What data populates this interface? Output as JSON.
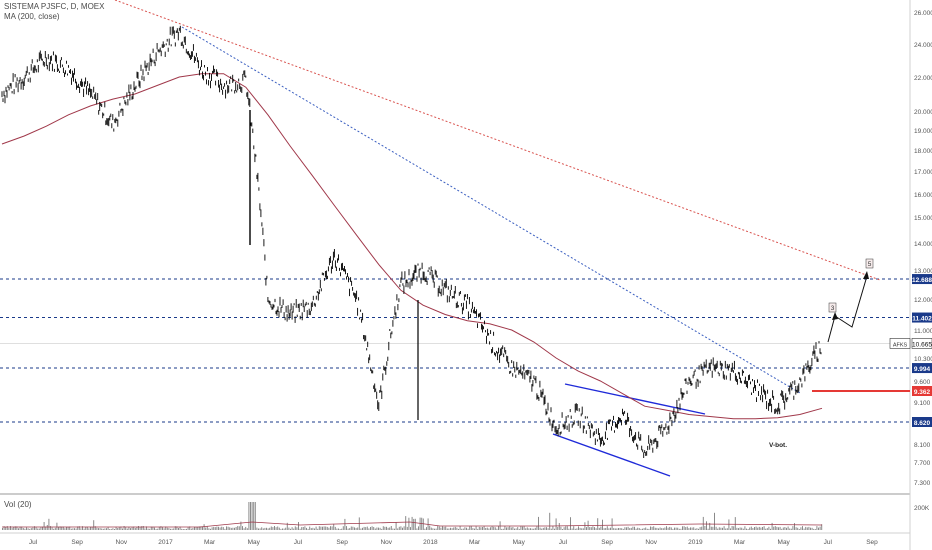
{
  "header": {
    "symbol_line": "SISTEMA PJSFC, D, MOEX",
    "ma_line": "MA (200, close)",
    "vol_label": "Vol (20)"
  },
  "price_axis": {
    "ticks": [
      "26.000",
      "24.000",
      "22.000",
      "20.000",
      "19.000",
      "18.000",
      "17.000",
      "16.000",
      "15.000",
      "14.000",
      "13.000",
      "12.000",
      "11.000",
      "10.300",
      "9.600",
      "9.100",
      "8.620",
      "8.100",
      "7.700",
      "7.300"
    ],
    "volume_tick": "200K"
  },
  "time_axis": {
    "labels": [
      "Jul",
      "Sep",
      "Nov",
      "2017",
      "Mar",
      "May",
      "Jul",
      "Sep",
      "Nov",
      "2018",
      "Mar",
      "May",
      "Jul",
      "Sep",
      "Nov",
      "2019",
      "Mar",
      "May",
      "Jul",
      "Sep"
    ]
  },
  "levels": [
    {
      "value": "12.688",
      "color": "#1a3a8a",
      "style": "dashed"
    },
    {
      "value": "11.402",
      "color": "#1a3a8a",
      "style": "dashed"
    },
    {
      "value": "9.994",
      "color": "#1a3a8a",
      "style": "dashed"
    },
    {
      "value": "9.362",
      "color": "#e53935",
      "style": "solid"
    },
    {
      "value": "8.620",
      "color": "#1a3a8a",
      "style": "dashed"
    }
  ],
  "last_price": {
    "symbol": "AFKS",
    "value": "10.665"
  },
  "annotations": {
    "wave_3": "3",
    "wave_5": "5",
    "bottom_label": "V-bot."
  },
  "colors": {
    "candles": "#000000",
    "ma_line": "#a0384a",
    "long_trend": "#d9534f",
    "mid_trend": "#3b5fc0",
    "channel": "#1f2ad8",
    "level_badge": "#1a3a8a",
    "red_level": "#e53935"
  },
  "chart_data": {
    "type": "line",
    "title": "SISTEMA PJSFC, D, MOEX",
    "xlabel": "",
    "ylabel": "",
    "ylim": [
      7.3,
      26.0
    ],
    "y_scale": "log",
    "x": [
      "2016-06",
      "2016-07",
      "2016-08",
      "2016-09",
      "2016-10",
      "2016-11",
      "2016-12",
      "2017-01",
      "2017-02",
      "2017-03",
      "2017-04",
      "2017-05",
      "2017-06",
      "2017-07",
      "2017-08",
      "2017-09",
      "2017-10",
      "2017-11",
      "2017-12",
      "2018-01",
      "2018-02",
      "2018-03",
      "2018-04",
      "2018-05",
      "2018-06",
      "2018-07",
      "2018-08",
      "2018-09",
      "2018-10",
      "2018-11",
      "2018-12",
      "2019-01",
      "2019-02",
      "2019-03",
      "2019-04",
      "2019-05",
      "2019-06",
      "2019-07"
    ],
    "series": [
      {
        "name": "",
        "values": [
          21.0,
          22.0,
          23.2,
          22.5,
          21.0,
          19.3,
          21.5,
          23.5,
          24.8,
          22.5,
          21.5,
          21.8,
          12.0,
          11.5,
          11.8,
          13.5,
          12.0,
          9.0,
          12.5,
          13.0,
          12.3,
          11.8,
          10.8,
          10.0,
          9.6,
          8.5,
          8.8,
          8.2,
          8.8,
          7.9,
          8.5,
          9.6,
          10.0,
          9.9,
          9.4,
          9.0,
          9.6,
          10.665
        ]
      },
      {
        "name": "MA (200, close)",
        "values": [
          18.3,
          18.7,
          19.2,
          19.8,
          20.3,
          20.7,
          21.0,
          21.5,
          22.0,
          22.2,
          22.2,
          21.4,
          19.8,
          18.2,
          16.8,
          15.5,
          14.3,
          13.2,
          12.3,
          11.8,
          11.5,
          11.3,
          11.2,
          11.0,
          10.7,
          10.3,
          9.9,
          9.6,
          9.3,
          9.0,
          8.9,
          8.8,
          8.75,
          8.7,
          8.7,
          8.72,
          8.8,
          8.95
        ]
      }
    ],
    "volume_axis_max": "200K"
  }
}
